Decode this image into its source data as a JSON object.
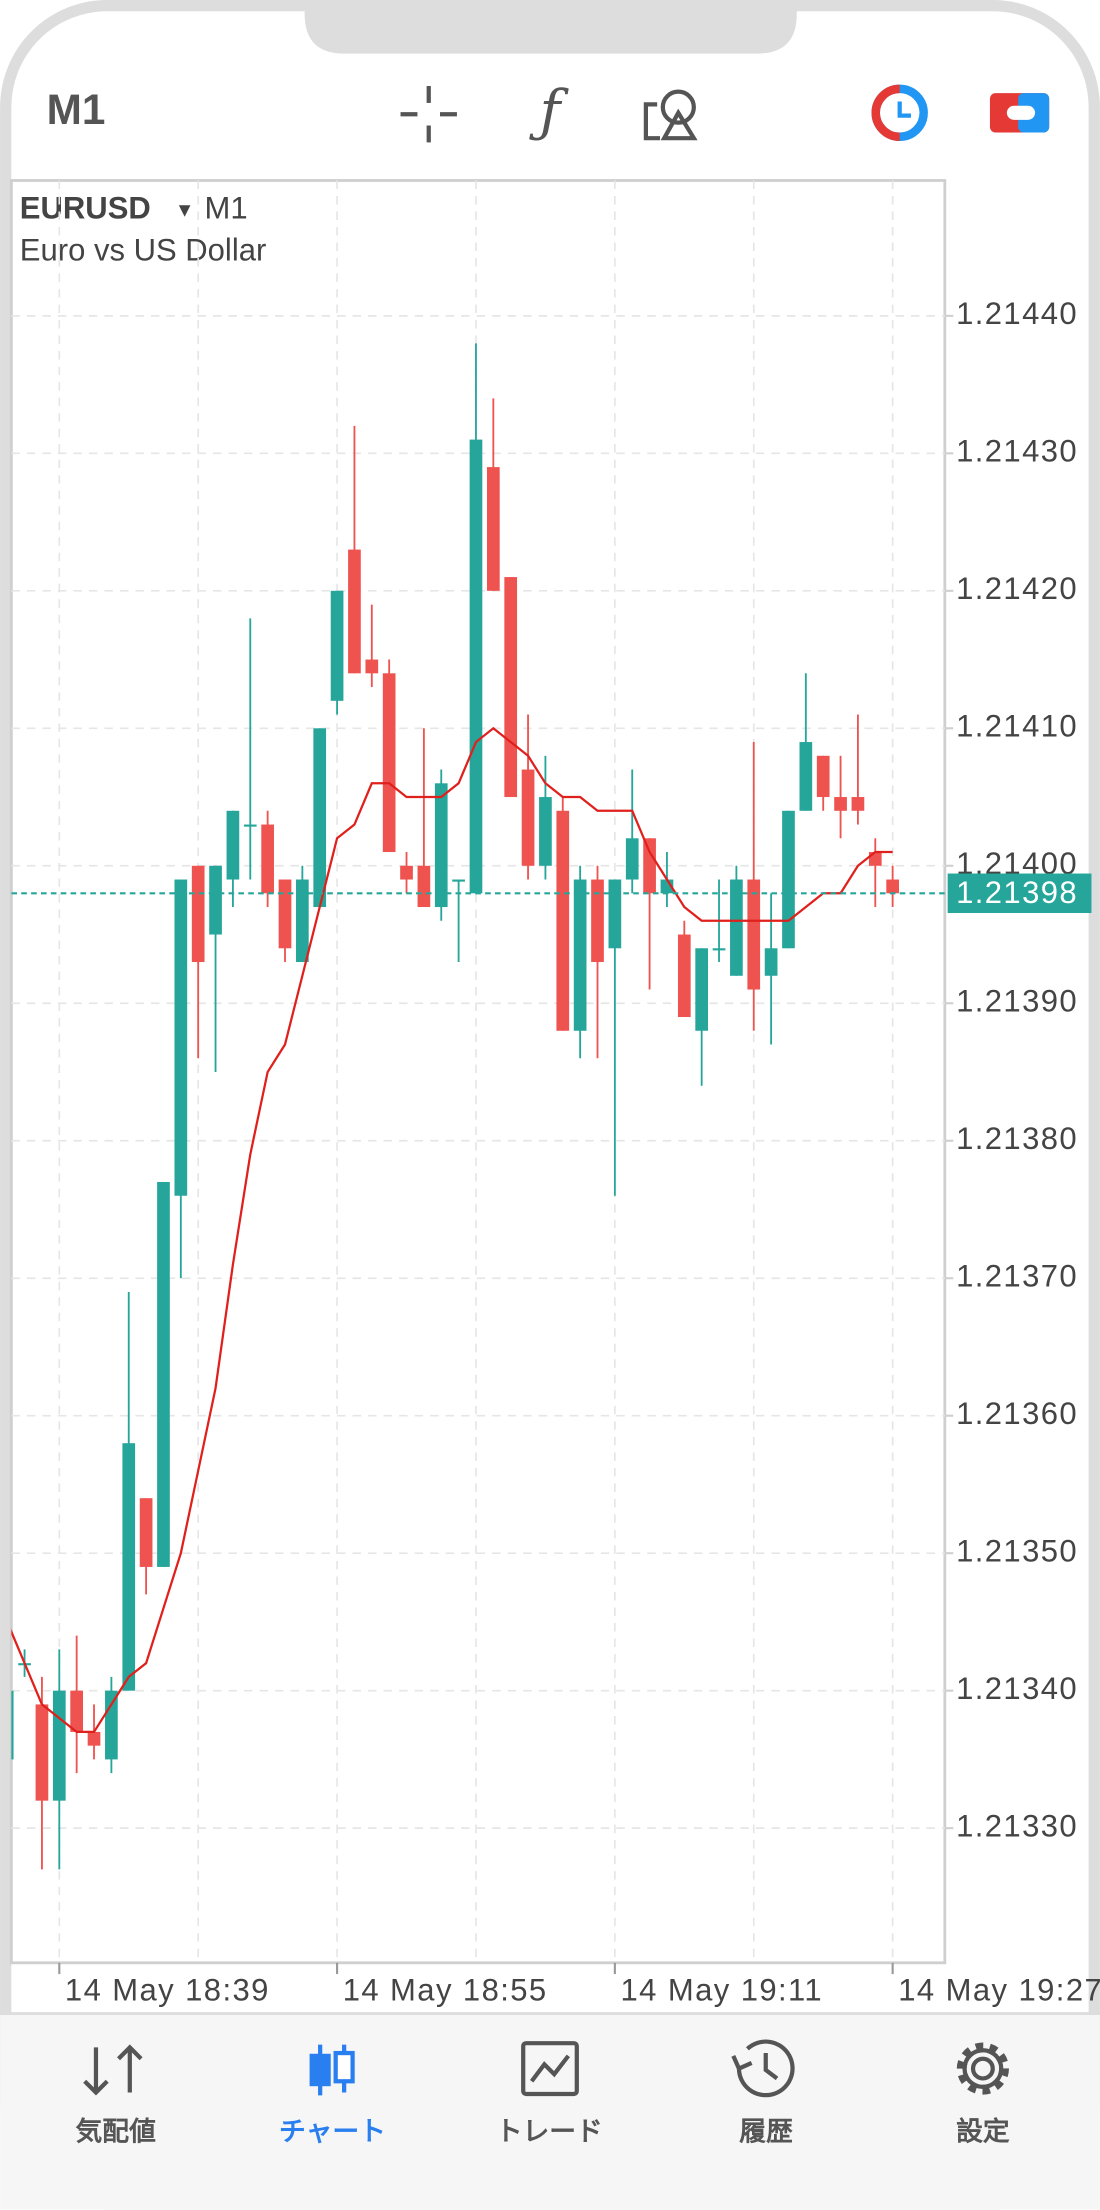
{
  "toolbar": {
    "timeframe": "M1"
  },
  "chart_data": {
    "type": "candlestick",
    "symbol": "EURUSD",
    "period": "M1",
    "description": "Euro vs US Dollar",
    "x": [
      "14 May 18:36",
      "14 May 18:37",
      "14 May 18:38",
      "14 May 18:39",
      "14 May 18:40",
      "14 May 18:41",
      "14 May 18:42",
      "14 May 18:43",
      "14 May 18:44",
      "14 May 18:45",
      "14 May 18:46",
      "14 May 18:47",
      "14 May 18:48",
      "14 May 18:49",
      "14 May 18:50",
      "14 May 18:51",
      "14 May 18:52",
      "14 May 18:53",
      "14 May 18:54",
      "14 May 18:55",
      "14 May 18:56",
      "14 May 18:57",
      "14 May 18:58",
      "14 May 18:59",
      "14 May 19:00",
      "14 May 19:01",
      "14 May 19:02",
      "14 May 19:03",
      "14 May 19:04",
      "14 May 19:05",
      "14 May 19:06",
      "14 May 19:07",
      "14 May 19:08",
      "14 May 19:09",
      "14 May 19:10",
      "14 May 19:11",
      "14 May 19:12",
      "14 May 19:13",
      "14 May 19:14",
      "14 May 19:15",
      "14 May 19:16",
      "14 May 19:17",
      "14 May 19:18",
      "14 May 19:19",
      "14 May 19:20",
      "14 May 19:21",
      "14 May 19:22",
      "14 May 19:23",
      "14 May 19:24",
      "14 May 19:25",
      "14 May 19:26",
      "14 May 19:27"
    ],
    "open": [
      1.21335,
      1.21342,
      1.21339,
      1.21332,
      1.2134,
      1.21337,
      1.21335,
      1.2134,
      1.21354,
      1.21349,
      1.21376,
      1.214,
      1.21395,
      1.21399,
      1.21403,
      1.21403,
      1.21399,
      1.21393,
      1.21397,
      1.21412,
      1.21423,
      1.21415,
      1.21414,
      1.214,
      1.214,
      1.21397,
      1.21399,
      1.21398,
      1.21429,
      1.21421,
      1.21407,
      1.214,
      1.21404,
      1.21388,
      1.21399,
      1.21394,
      1.21399,
      1.21402,
      1.21398,
      1.21395,
      1.21388,
      1.21394,
      1.21392,
      1.21399,
      1.21392,
      1.21394,
      1.21404,
      1.21408,
      1.21405,
      1.21405,
      1.21401,
      1.21399
    ],
    "high": [
      1.21343,
      1.21343,
      1.21341,
      1.21343,
      1.21344,
      1.21339,
      1.21341,
      1.21369,
      1.21354,
      1.21377,
      1.21399,
      1.214,
      1.214,
      1.21404,
      1.21418,
      1.21404,
      1.21399,
      1.214,
      1.2141,
      1.2142,
      1.21432,
      1.21419,
      1.21415,
      1.21401,
      1.2141,
      1.21407,
      1.21399,
      1.21438,
      1.21434,
      1.21421,
      1.21411,
      1.21408,
      1.21405,
      1.214,
      1.214,
      1.21399,
      1.21407,
      1.21402,
      1.21401,
      1.21396,
      1.21394,
      1.21399,
      1.214,
      1.21409,
      1.21398,
      1.21404,
      1.21414,
      1.21408,
      1.21408,
      1.21411,
      1.21402,
      1.214
    ],
    "low": [
      1.21334,
      1.21341,
      1.21327,
      1.21327,
      1.21334,
      1.21335,
      1.21334,
      1.2134,
      1.21347,
      1.21349,
      1.2137,
      1.21386,
      1.21385,
      1.21397,
      1.21399,
      1.21397,
      1.21393,
      1.21393,
      1.21397,
      1.21411,
      1.21414,
      1.21413,
      1.21401,
      1.21398,
      1.21397,
      1.21396,
      1.21393,
      1.21398,
      1.2142,
      1.21405,
      1.21399,
      1.21399,
      1.21388,
      1.21386,
      1.21386,
      1.21376,
      1.21398,
      1.21391,
      1.21397,
      1.21389,
      1.21384,
      1.21393,
      1.21392,
      1.21388,
      1.21387,
      1.21394,
      1.21404,
      1.21404,
      1.21402,
      1.21403,
      1.21397,
      1.21397
    ],
    "close": [
      1.2134,
      1.21342,
      1.21332,
      1.2134,
      1.21337,
      1.21336,
      1.2134,
      1.21358,
      1.21349,
      1.21377,
      1.21399,
      1.21393,
      1.214,
      1.21404,
      1.21403,
      1.21398,
      1.21394,
      1.21399,
      1.2141,
      1.2142,
      1.21414,
      1.21414,
      1.21401,
      1.21399,
      1.21397,
      1.21406,
      1.21399,
      1.21431,
      1.2142,
      1.21405,
      1.214,
      1.21405,
      1.21388,
      1.21399,
      1.21393,
      1.21399,
      1.21402,
      1.21398,
      1.21399,
      1.21389,
      1.21394,
      1.21394,
      1.21399,
      1.21391,
      1.21394,
      1.21404,
      1.21409,
      1.21405,
      1.21404,
      1.21404,
      1.214,
      1.21398
    ],
    "up_color": "#26a69a",
    "down_color": "#ef5350",
    "ma_color": "#e0201c",
    "ma_values": [
      1.21345,
      1.21342,
      1.21339,
      1.21338,
      1.21337,
      1.21337,
      1.21339,
      1.21341,
      1.21342,
      1.21346,
      1.2135,
      1.21356,
      1.21362,
      1.21371,
      1.21379,
      1.21385,
      1.21387,
      1.21392,
      1.21397,
      1.21402,
      1.21403,
      1.21406,
      1.21406,
      1.21405,
      1.21405,
      1.21405,
      1.21406,
      1.21409,
      1.2141,
      1.21409,
      1.21408,
      1.21406,
      1.21405,
      1.21405,
      1.21404,
      1.21404,
      1.21404,
      1.21401,
      1.21399,
      1.21397,
      1.21396,
      1.21396,
      1.21396,
      1.21396,
      1.21396,
      1.21396,
      1.21397,
      1.21398,
      1.21398,
      1.214,
      1.21401,
      1.21401
    ],
    "last_price": 1.21398,
    "ylim": [
      1.2132,
      1.2145
    ],
    "yticks": [
      {
        "value": 1.2133,
        "label": "1.21330"
      },
      {
        "value": 1.2134,
        "label": "1.21340"
      },
      {
        "value": 1.2135,
        "label": "1.21350"
      },
      {
        "value": 1.2136,
        "label": "1.21360"
      },
      {
        "value": 1.2137,
        "label": "1.21370"
      },
      {
        "value": 1.2138,
        "label": "1.21380"
      },
      {
        "value": 1.2139,
        "label": "1.21390"
      },
      {
        "value": 1.214,
        "label": "1.21400"
      },
      {
        "value": 1.2141,
        "label": "1.21410"
      },
      {
        "value": 1.2142,
        "label": "1.21420"
      },
      {
        "value": 1.2143,
        "label": "1.21430"
      },
      {
        "value": 1.2144,
        "label": "1.21440"
      }
    ],
    "xticks": [
      "14 May 18:39",
      "14 May 18:55",
      "14 May 19:11",
      "14 May 19:27"
    ],
    "grid": true
  },
  "tabs": [
    {
      "label": "気配値"
    },
    {
      "label": "チャート"
    },
    {
      "label": "トレード"
    },
    {
      "label": "履歴"
    },
    {
      "label": "設定"
    }
  ],
  "active_tab": 1
}
